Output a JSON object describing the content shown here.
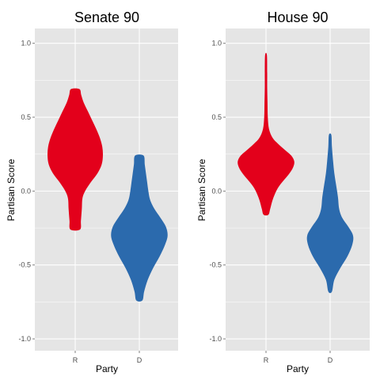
{
  "chart_data": [
    {
      "type": "violin",
      "title": "Senate 90",
      "xlabel": "Party",
      "ylabel": "Partisan Score",
      "ylim": [
        -1.08,
        1.1
      ],
      "yticks": [
        -1.0,
        -0.5,
        0.0,
        0.5,
        1.0
      ],
      "ytick_labels": [
        "-1.0",
        "-0.5",
        "0.0",
        "0.5",
        "1.0"
      ],
      "categories": [
        "R",
        "D"
      ],
      "grid": true,
      "series": [
        {
          "category": "R",
          "color": "#E3001B",
          "range": [
            -0.26,
            0.69
          ],
          "profile": [
            [
              -0.26,
              0.16
            ],
            [
              -0.2,
              0.19
            ],
            [
              -0.12,
              0.22
            ],
            [
              -0.05,
              0.24
            ],
            [
              0.0,
              0.33
            ],
            [
              0.06,
              0.52
            ],
            [
              0.12,
              0.74
            ],
            [
              0.18,
              0.88
            ],
            [
              0.24,
              0.92
            ],
            [
              0.3,
              0.9
            ],
            [
              0.36,
              0.82
            ],
            [
              0.42,
              0.7
            ],
            [
              0.48,
              0.56
            ],
            [
              0.54,
              0.42
            ],
            [
              0.6,
              0.28
            ],
            [
              0.65,
              0.2
            ],
            [
              0.69,
              0.14
            ]
          ]
        },
        {
          "category": "D",
          "color": "#2B6AAD",
          "range": [
            -0.74,
            0.24
          ],
          "profile": [
            [
              -0.74,
              0.1
            ],
            [
              -0.68,
              0.16
            ],
            [
              -0.6,
              0.28
            ],
            [
              -0.52,
              0.46
            ],
            [
              -0.44,
              0.68
            ],
            [
              -0.36,
              0.86
            ],
            [
              -0.3,
              0.94
            ],
            [
              -0.24,
              0.88
            ],
            [
              -0.18,
              0.7
            ],
            [
              -0.12,
              0.5
            ],
            [
              -0.06,
              0.36
            ],
            [
              0.0,
              0.3
            ],
            [
              0.06,
              0.26
            ],
            [
              0.12,
              0.22
            ],
            [
              0.18,
              0.18
            ],
            [
              0.24,
              0.14
            ]
          ]
        }
      ]
    },
    {
      "type": "violin",
      "title": "House 90",
      "xlabel": "Party",
      "ylabel": "Partisan Score",
      "ylim": [
        -1.08,
        1.1
      ],
      "yticks": [
        -1.0,
        -0.5,
        0.0,
        0.5,
        1.0
      ],
      "ytick_labels": [
        "-1.0",
        "-0.5",
        "0.0",
        "0.5",
        "1.0"
      ],
      "categories": [
        "R",
        "D"
      ],
      "grid": true,
      "series": [
        {
          "category": "R",
          "color": "#E3001B",
          "range": [
            -0.16,
            0.92
          ],
          "profile": [
            [
              -0.16,
              0.08
            ],
            [
              -0.12,
              0.14
            ],
            [
              -0.06,
              0.22
            ],
            [
              0.0,
              0.34
            ],
            [
              0.04,
              0.46
            ],
            [
              0.08,
              0.62
            ],
            [
              0.12,
              0.78
            ],
            [
              0.16,
              0.9
            ],
            [
              0.2,
              0.94
            ],
            [
              0.24,
              0.84
            ],
            [
              0.28,
              0.62
            ],
            [
              0.32,
              0.4
            ],
            [
              0.36,
              0.22
            ],
            [
              0.42,
              0.1
            ],
            [
              0.5,
              0.06
            ],
            [
              0.6,
              0.05
            ],
            [
              0.7,
              0.04
            ],
            [
              0.8,
              0.04
            ],
            [
              0.92,
              0.03
            ]
          ]
        },
        {
          "category": "D",
          "color": "#2B6AAD",
          "range": [
            -0.68,
            0.38
          ],
          "profile": [
            [
              -0.68,
              0.06
            ],
            [
              -0.6,
              0.14
            ],
            [
              -0.52,
              0.34
            ],
            [
              -0.44,
              0.58
            ],
            [
              -0.36,
              0.74
            ],
            [
              -0.3,
              0.76
            ],
            [
              -0.24,
              0.6
            ],
            [
              -0.18,
              0.4
            ],
            [
              -0.12,
              0.3
            ],
            [
              -0.04,
              0.26
            ],
            [
              0.04,
              0.2
            ],
            [
              0.12,
              0.14
            ],
            [
              0.2,
              0.1
            ],
            [
              0.3,
              0.06
            ],
            [
              0.38,
              0.04
            ]
          ]
        }
      ]
    }
  ]
}
